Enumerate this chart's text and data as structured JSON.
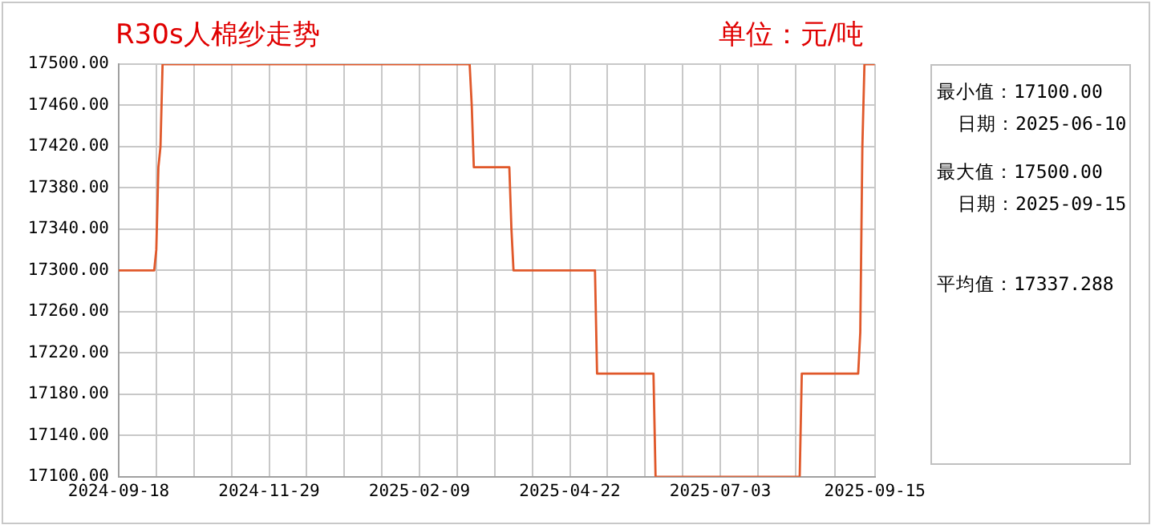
{
  "chart_data": {
    "type": "line",
    "title": "R30s人棉纱走势",
    "subtitle": "单位：元/吨",
    "annotations": [
      "最小值：17100.00",
      "日期：2025-06-10",
      "最大值：17500.00",
      "日期：2025-09-15",
      "平均值：17337.288"
    ],
    "series": [
      {
        "color": "#e0582a",
        "x": [
          "2024-09-18",
          "2024-10-05",
          "2024-10-06",
          "2024-10-07",
          "2024-10-08",
          "2024-10-09",
          "2025-03-05",
          "2025-03-06",
          "2025-03-07",
          "2025-03-24",
          "2025-03-25",
          "2025-03-26",
          "2025-05-04",
          "2025-05-05",
          "2025-06-01",
          "2025-06-02",
          "2025-08-10",
          "2025-08-11",
          "2025-09-07",
          "2025-09-08",
          "2025-09-09",
          "2025-09-10",
          "2025-09-15"
        ],
        "values": [
          17300,
          17300,
          17320,
          17400,
          17420,
          17500,
          17500,
          17460,
          17400,
          17400,
          17340,
          17300,
          17300,
          17200,
          17200,
          17100,
          17100,
          17200,
          17200,
          17240,
          17420,
          17500,
          17500
        ]
      }
    ],
    "xlim": [
      "2024-09-18",
      "2025-09-15"
    ],
    "xticks": [
      {
        "value": "2024-09-18",
        "label": "2024-09-18"
      },
      {
        "value": "2024-10-06",
        "label": null
      },
      {
        "value": "2024-10-24",
        "label": null
      },
      {
        "value": "2024-11-11",
        "label": null
      },
      {
        "value": "2024-11-29",
        "label": "2024-11-29"
      },
      {
        "value": "2024-12-17",
        "label": null
      },
      {
        "value": "2025-01-04",
        "label": null
      },
      {
        "value": "2025-01-22",
        "label": null
      },
      {
        "value": "2025-02-09",
        "label": "2025-02-09"
      },
      {
        "value": "2025-02-27",
        "label": null
      },
      {
        "value": "2025-03-17",
        "label": null
      },
      {
        "value": "2025-04-04",
        "label": null
      },
      {
        "value": "2025-04-22",
        "label": "2025-04-22"
      },
      {
        "value": "2025-05-10",
        "label": null
      },
      {
        "value": "2025-05-28",
        "label": null
      },
      {
        "value": "2025-06-15",
        "label": null
      },
      {
        "value": "2025-07-03",
        "label": "2025-07-03"
      },
      {
        "value": "2025-07-21",
        "label": null
      },
      {
        "value": "2025-08-08",
        "label": null
      },
      {
        "value": "2025-08-27",
        "label": null
      },
      {
        "value": "2025-09-15",
        "label": "2025-09-15"
      }
    ],
    "ylim": [
      17100,
      17500
    ],
    "yticks": [
      {
        "value": 17100,
        "label": "17100.00"
      },
      {
        "value": 17140,
        "label": "17140.00"
      },
      {
        "value": 17180,
        "label": "17180.00"
      },
      {
        "value": 17220,
        "label": "17220.00"
      },
      {
        "value": 17260,
        "label": "17260.00"
      },
      {
        "value": 17300,
        "label": "17300.00"
      },
      {
        "value": 17340,
        "label": "17340.00"
      },
      {
        "value": 17380,
        "label": "17380.00"
      },
      {
        "value": 17420,
        "label": "17420.00"
      },
      {
        "value": 17460,
        "label": "17460.00"
      },
      {
        "value": 17500,
        "label": "17500.00"
      }
    ],
    "grid": true,
    "marker": "none",
    "line_style": "solid"
  }
}
